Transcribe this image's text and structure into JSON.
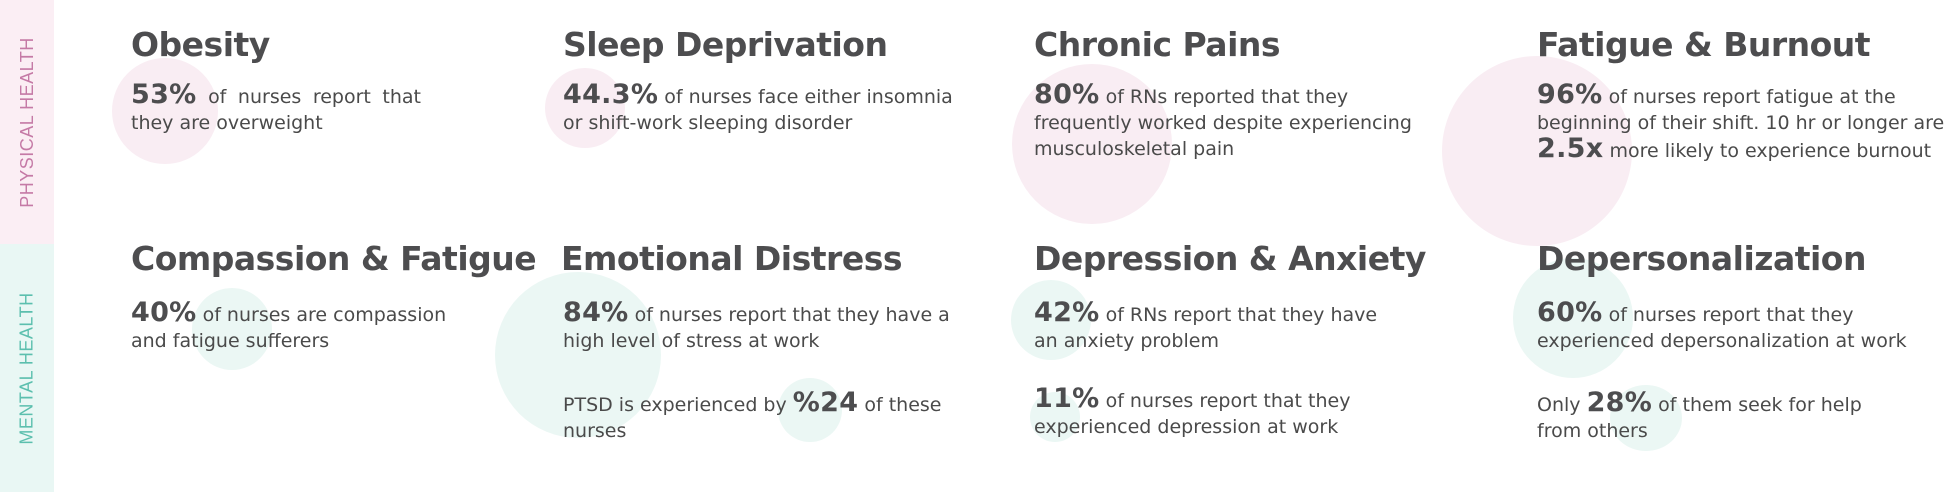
{
  "sidebar": {
    "physical": "PHYSICAL HEALTH",
    "mental": "MENTAL HEALTH"
  },
  "colors": {
    "physical_accent": "#c57aa6",
    "physical_bg": "#fbeef4",
    "mental_accent": "#5cbfae",
    "mental_bg": "#e9f7f4",
    "heading": "#4d4d4f"
  },
  "physical": {
    "obesity": {
      "title": "Obesity",
      "stat": "53%",
      "line1_words": [
        "of",
        "nurses",
        "report",
        "that"
      ],
      "line2": "they are overweight"
    },
    "sleep": {
      "title": "Sleep Deprivation",
      "stat": "44.3%",
      "line1": "of nurses face either insomnia",
      "line2": "or shift-work sleeping disorder"
    },
    "pains": {
      "title": "Chronic Pains",
      "stat": "80%",
      "line1": "of RNs reported that they",
      "line2": "frequently worked despite experiencing",
      "line3": "musculoskeletal pain"
    },
    "fatigue": {
      "title": "Fatigue & Burnout",
      "stat": "96%",
      "line1": "of nurses report fatigue at the",
      "line2": "beginning of their shift. 10 hr or longer are",
      "stat2": "2.5x",
      "line3": "more likely to experience burnout"
    }
  },
  "mental": {
    "compassion": {
      "title": "Compassion & Fatigue",
      "stat": "40%",
      "line1": "of nurses are compassion",
      "line2": "and fatigue sufferers"
    },
    "emotional": {
      "title": "Emotional Distress",
      "stat": "84%",
      "line1": "of nurses report that they have a",
      "line2": "high level of stress at work",
      "ptsd_pre": "PTSD is experienced by",
      "ptsd_stat": "%24",
      "ptsd_post": "of these",
      "ptsd_line2": "nurses"
    },
    "depression": {
      "title": "Depression & Anxiety",
      "stat": "42%",
      "line1": "of RNs report that they have",
      "line2": "an anxiety problem",
      "stat2": "11%",
      "line3": "of nurses report that they",
      "line4": "experienced depression at work"
    },
    "depersonalization": {
      "title": "Depersonalization",
      "stat": "60%",
      "line1": "of nurses report that they",
      "line2": "experienced depersonalization at work",
      "only": "Only",
      "stat2": "28%",
      "line3": "of them seek for help",
      "line4": "from others"
    }
  }
}
